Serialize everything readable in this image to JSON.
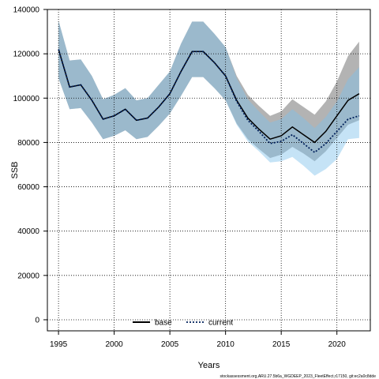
{
  "chart_data": {
    "type": "area",
    "xlabel": "Years",
    "ylabel": "SSB",
    "xlim": [
      1994,
      2023
    ],
    "ylim": [
      -5000,
      140000
    ],
    "x_ticks": [
      1995,
      2000,
      2005,
      2010,
      2015,
      2020
    ],
    "y_ticks": [
      0,
      20000,
      40000,
      60000,
      80000,
      100000,
      120000,
      140000
    ],
    "grid": true,
    "legend_position": "bottom-left",
    "x": [
      1995,
      1996,
      1997,
      1998,
      1999,
      2000,
      2001,
      2002,
      2003,
      2004,
      2005,
      2006,
      2007,
      2008,
      2009,
      2010,
      2011,
      2012,
      2013,
      2014,
      2015,
      2016,
      2017,
      2018,
      2019,
      2020,
      2021,
      2022
    ],
    "series": [
      {
        "name": "base",
        "line_style": "solid",
        "line_color": "#000000",
        "band_color": "#9a9a9a",
        "values": [
          122000,
          105000,
          106000,
          99000,
          90500,
          92000,
          95000,
          90000,
          91000,
          96000,
          102000,
          112000,
          121000,
          121000,
          116000,
          110000,
          99000,
          91000,
          86000,
          81500,
          83000,
          87000,
          83500,
          80000,
          85000,
          92000,
          99000,
          102000
        ],
        "lower": [
          109000,
          95000,
          95500,
          89000,
          81500,
          83000,
          85500,
          81500,
          82500,
          87500,
          93000,
          101000,
          109500,
          109500,
          104500,
          99000,
          88500,
          81500,
          77000,
          73000,
          74500,
          78000,
          75000,
          71500,
          76000,
          82000,
          88000,
          90000
        ],
        "upper": [
          135000,
          117000,
          117500,
          110000,
          99500,
          101500,
          104500,
          99000,
          100000,
          106000,
          112000,
          124500,
          134500,
          134500,
          129000,
          123000,
          110000,
          101500,
          96500,
          92000,
          94000,
          99500,
          96000,
          92500,
          98500,
          107500,
          119000,
          125500
        ]
      },
      {
        "name": "current",
        "line_style": "dotted",
        "line_color": "#00205b",
        "band_color": "#7ec0ea",
        "values": [
          122000,
          105000,
          106000,
          99000,
          90500,
          92000,
          95000,
          90000,
          91000,
          96000,
          102000,
          112000,
          121000,
          121000,
          116000,
          110000,
          98500,
          90000,
          85000,
          79500,
          80500,
          83500,
          79500,
          75500,
          79500,
          85000,
          90500,
          92000
        ],
        "lower": [
          109000,
          95000,
          95500,
          89000,
          81500,
          83000,
          85500,
          81500,
          82500,
          87500,
          93000,
          101000,
          109500,
          109500,
          104500,
          99000,
          88000,
          80500,
          76000,
          71000,
          71500,
          73500,
          69500,
          65000,
          68000,
          72500,
          81500,
          82000
        ],
        "upper": [
          135000,
          117000,
          117500,
          110000,
          99500,
          101500,
          104500,
          99000,
          100000,
          106000,
          112000,
          124500,
          134500,
          134500,
          129000,
          123000,
          109000,
          99500,
          94000,
          89000,
          90500,
          95000,
          91000,
          86500,
          91500,
          98500,
          108500,
          114000
        ]
      }
    ]
  },
  "footer_text": "stockassessment.org,ARU.27.5b6a_WGDEEP_2023_FleetEffect,r17150, git:ec2a0c8dde"
}
